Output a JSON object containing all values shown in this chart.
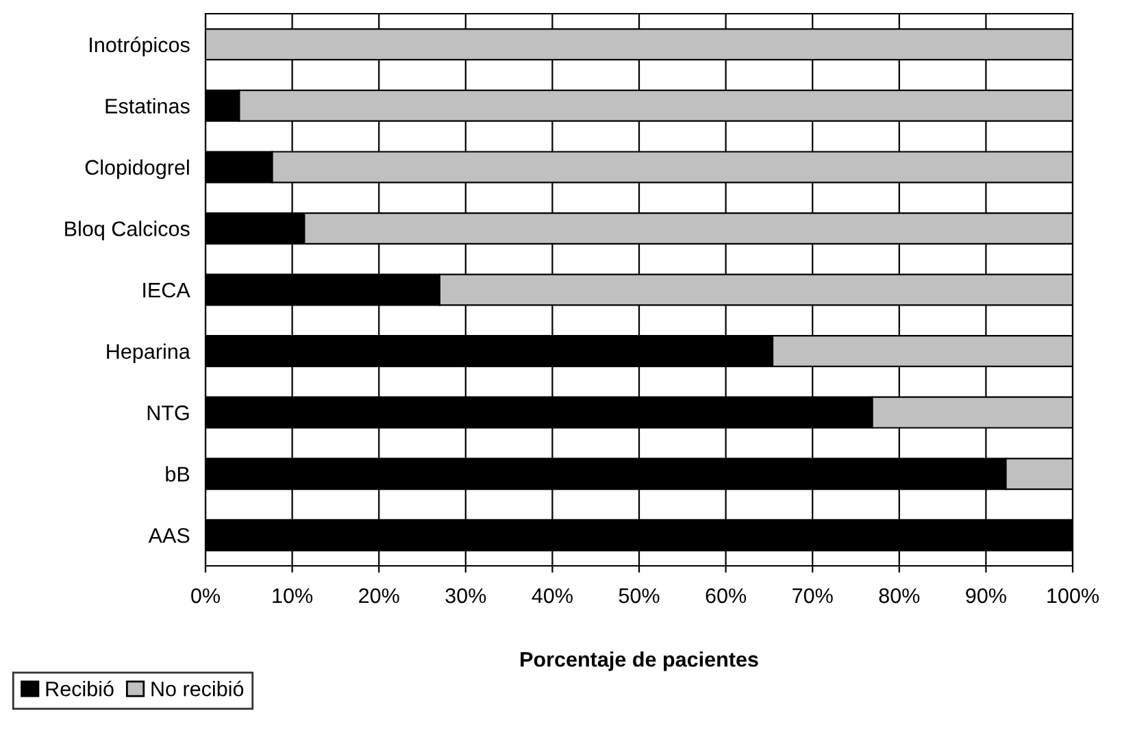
{
  "chart_data": {
    "type": "bar",
    "orientation": "horizontal",
    "stacked": true,
    "xlabel": "Porcentaje de pacientes",
    "categories": [
      "Inotrópicos",
      "Estatinas",
      "Clopidogrel",
      "Bloq Calcicos",
      "IECA",
      "Heparina",
      "NTG",
      "bB",
      "AAS"
    ],
    "series": [
      {
        "name": "Recibió",
        "color": "#000000",
        "values": [
          0,
          3.9,
          7.7,
          11.4,
          27,
          65.4,
          76.9,
          92.3,
          100
        ]
      },
      {
        "name": "No recibió",
        "color": "#c0c0c0",
        "values": [
          100,
          96.1,
          92.3,
          88.6,
          73,
          34.6,
          23.1,
          7.7,
          0
        ]
      }
    ],
    "xlim": [
      0,
      100
    ],
    "xticks": [
      {
        "value": 0,
        "label": "0%"
      },
      {
        "value": 10,
        "label": "10%"
      },
      {
        "value": 20,
        "label": "20%"
      },
      {
        "value": 30,
        "label": "30%"
      },
      {
        "value": 40,
        "label": "40%"
      },
      {
        "value": 50,
        "label": "50%"
      },
      {
        "value": 60,
        "label": "60%"
      },
      {
        "value": 70,
        "label": "70%"
      },
      {
        "value": 80,
        "label": "80%"
      },
      {
        "value": 90,
        "label": "90%"
      },
      {
        "value": 100,
        "label": "100%"
      }
    ],
    "grid": "x",
    "legend": "bottom left"
  }
}
